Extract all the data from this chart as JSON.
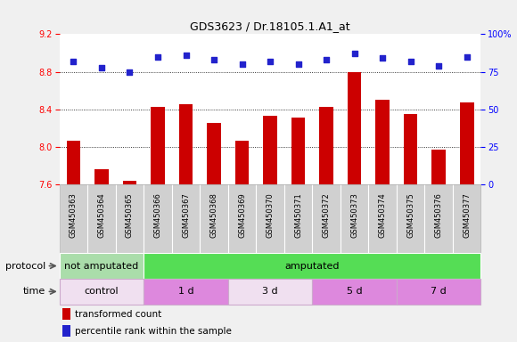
{
  "title": "GDS3623 / Dr.18105.1.A1_at",
  "samples": [
    "GSM450363",
    "GSM450364",
    "GSM450365",
    "GSM450366",
    "GSM450367",
    "GSM450368",
    "GSM450369",
    "GSM450370",
    "GSM450371",
    "GSM450372",
    "GSM450373",
    "GSM450374",
    "GSM450375",
    "GSM450376",
    "GSM450377"
  ],
  "bar_values": [
    8.07,
    7.76,
    7.64,
    8.43,
    8.46,
    8.26,
    8.07,
    8.33,
    8.31,
    8.43,
    8.8,
    8.5,
    8.35,
    7.97,
    8.47
  ],
  "scatter_values": [
    82,
    78,
    75,
    85,
    86,
    83,
    80,
    82,
    80,
    83,
    87,
    84,
    82,
    79,
    85
  ],
  "bar_color": "#cc0000",
  "scatter_color": "#2222cc",
  "ylim_left": [
    7.6,
    9.2
  ],
  "ylim_right": [
    0,
    100
  ],
  "yticks_left": [
    7.6,
    8.0,
    8.4,
    8.8,
    9.2
  ],
  "yticks_right": [
    0,
    25,
    50,
    75,
    100
  ],
  "ytick_labels_right": [
    "0",
    "25",
    "50",
    "75",
    "100%"
  ],
  "grid_values": [
    8.0,
    8.4,
    8.8
  ],
  "fig_bg": "#f0f0f0",
  "plot_bg": "#ffffff",
  "xtick_bg": "#d0d0d0",
  "protocol_row": {
    "label": "protocol",
    "segments": [
      {
        "text": "not amputated",
        "start": 0,
        "end": 3,
        "color": "#aaddaa"
      },
      {
        "text": "amputated",
        "start": 3,
        "end": 15,
        "color": "#55dd55"
      }
    ]
  },
  "time_row": {
    "label": "time",
    "segments": [
      {
        "text": "control",
        "start": 0,
        "end": 3,
        "color": "#f0e0f0"
      },
      {
        "text": "1 d",
        "start": 3,
        "end": 6,
        "color": "#dd88dd"
      },
      {
        "text": "3 d",
        "start": 6,
        "end": 9,
        "color": "#f0e0f0"
      },
      {
        "text": "5 d",
        "start": 9,
        "end": 12,
        "color": "#dd88dd"
      },
      {
        "text": "7 d",
        "start": 12,
        "end": 15,
        "color": "#dd88dd"
      }
    ]
  },
  "legend_items": [
    {
      "color": "#cc0000",
      "label": "transformed count"
    },
    {
      "color": "#2222cc",
      "label": "percentile rank within the sample"
    }
  ]
}
